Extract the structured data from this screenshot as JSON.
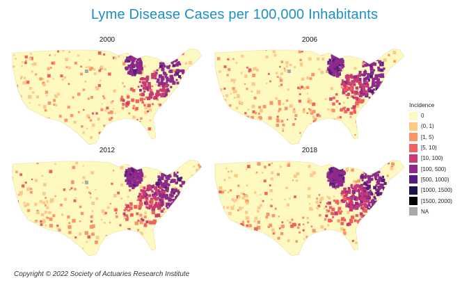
{
  "title": "Lyme Disease Cases per 100,000 Inhabitants",
  "panels": [
    {
      "year": "2000"
    },
    {
      "year": "2006"
    },
    {
      "year": "2012"
    },
    {
      "year": "2018"
    }
  ],
  "legend": {
    "title": "Incidence",
    "items": [
      {
        "label": "0",
        "color": "#fdf9c0"
      },
      {
        "label": "(0, 1)",
        "color": "#fdc98a"
      },
      {
        "label": "[1, 5)",
        "color": "#fb9467"
      },
      {
        "label": "[5, 10)",
        "color": "#f0605d"
      },
      {
        "label": "[10, 100)",
        "color": "#ca3b74"
      },
      {
        "label": "[100, 500)",
        "color": "#8e2a8b"
      },
      {
        "label": "[500, 1000)",
        "color": "#561d7f"
      },
      {
        "label": "[1000, 1500)",
        "color": "#22124c"
      },
      {
        "label": "[1500, 2000)",
        "color": "#000004"
      },
      {
        "label": "NA",
        "color": "#a9a9a9"
      }
    ]
  },
  "copyright": "Copyright © 2022 Society of Actuaries Research Institute"
}
